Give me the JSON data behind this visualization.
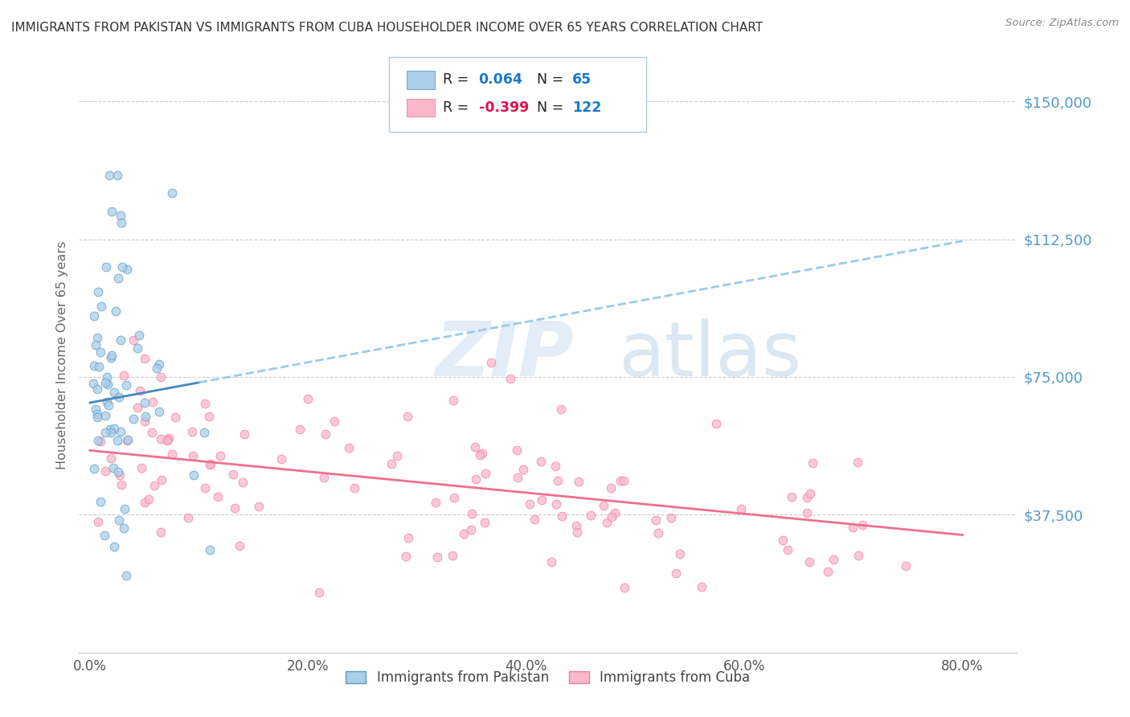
{
  "title": "IMMIGRANTS FROM PAKISTAN VS IMMIGRANTS FROM CUBA HOUSEHOLDER INCOME OVER 65 YEARS CORRELATION CHART",
  "source": "Source: ZipAtlas.com",
  "ylabel": "Householder Income Over 65 years",
  "xlabel_ticks": [
    "0.0%",
    "20.0%",
    "40.0%",
    "60.0%",
    "80.0%"
  ],
  "xlabel_vals": [
    0.0,
    20.0,
    40.0,
    60.0,
    80.0
  ],
  "ytick_vals": [
    0,
    37500,
    75000,
    112500,
    150000
  ],
  "ytick_labels": [
    "",
    "$37,500",
    "$75,000",
    "$112,500",
    "$150,000"
  ],
  "ylim": [
    0,
    162000
  ],
  "xlim": [
    -1,
    85
  ],
  "pakistan_color": "#aacde8",
  "cuba_color": "#f9b8cc",
  "pakistan_edge": "#5b9dc9",
  "cuba_edge": "#f07fa0",
  "pakistan_line_color": "#4488bb",
  "pakistan_line_color_dash": "#99cce8",
  "cuba_line_color": "#f07090",
  "R_pakistan": 0.064,
  "N_pakistan": 65,
  "R_cuba": -0.399,
  "N_cuba": 122,
  "pak_trend_y0": 68000,
  "pak_trend_y80": 112000,
  "cub_trend_y0": 55000,
  "cub_trend_y80": 32000,
  "pak_solid_x_end": 10.0,
  "watermark_zip": "ZIP",
  "watermark_atlas": "atlas",
  "background_color": "#ffffff",
  "grid_color": "#cccccc",
  "title_color": "#333333",
  "axis_label_color": "#666666",
  "ytick_color": "#5599cc",
  "legend_R_color_pak": "#1a7ac9",
  "legend_R_color_cuba": "#e01050",
  "legend_N_color": "#1a7ac9"
}
